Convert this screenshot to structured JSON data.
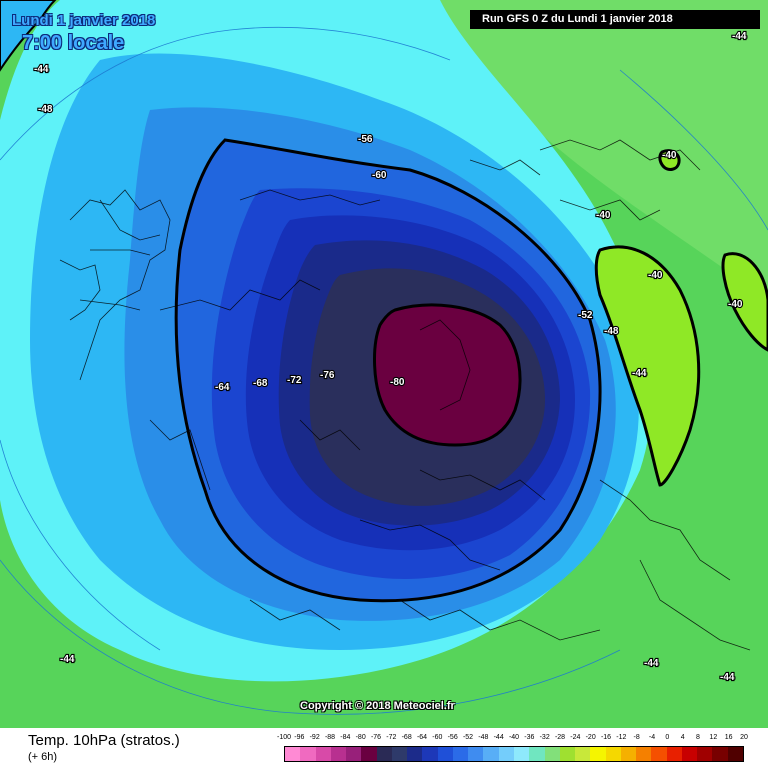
{
  "header": {
    "date": "Lundi 1 janvier 2018",
    "hour": "7:00 locale",
    "run": "Run GFS 0 Z du Lundi 1 janvier 2018"
  },
  "copyright": "Copyright © 2018 Meteociel.fr",
  "footer": {
    "title": "Temp. 10hPa (stratos.)",
    "subtitle": "(+ 6h)"
  },
  "legend": {
    "ticks": [
      "-100",
      "-96",
      "-92",
      "-88",
      "-84",
      "-80",
      "-76",
      "-72",
      "-68",
      "-64",
      "-60",
      "-56",
      "-52",
      "-48",
      "-44",
      "-40",
      "-36",
      "-32",
      "-28",
      "-24",
      "-20",
      "-16",
      "-12",
      "-8",
      "-4",
      "0",
      "4",
      "8",
      "12",
      "16",
      "20"
    ],
    "colors": [
      "#ff8ad4",
      "#f06ac0",
      "#d84aa8",
      "#b83090",
      "#98207a",
      "#6a0040",
      "#2a2a55",
      "#2e3a6a",
      "#1c2b8a",
      "#1d38b8",
      "#1f50d8",
      "#2b6be8",
      "#3f8cf0",
      "#58aef6",
      "#74cdfb",
      "#8ee9fc",
      "#70e6c0",
      "#82e07a",
      "#9fe030",
      "#c8e83a",
      "#f5f500",
      "#f5d800",
      "#f5b000",
      "#f58000",
      "#f55000",
      "#e82000",
      "#c80000",
      "#a00000",
      "#780000",
      "#500000"
    ]
  },
  "map_labels": [
    {
      "text": "-44",
      "where": "top-left corner"
    },
    {
      "text": "-48",
      "where": "upper left"
    },
    {
      "text": "-56",
      "where": "north of vortex"
    },
    {
      "text": "-60",
      "where": "north of vortex"
    },
    {
      "text": "-64",
      "where": "west of vortex"
    },
    {
      "text": "-68",
      "where": "west of vortex"
    },
    {
      "text": "-72",
      "where": "west of vortex"
    },
    {
      "text": "-76",
      "where": "west of vortex"
    },
    {
      "text": "-80",
      "where": "vortex core"
    },
    {
      "text": "-52",
      "where": "east of vortex"
    },
    {
      "text": "-48",
      "where": "east of vortex"
    },
    {
      "text": "-44",
      "where": "east of vortex"
    },
    {
      "text": "-40",
      "where": "east green zone"
    },
    {
      "text": "-40",
      "where": "east green zone"
    },
    {
      "text": "-40",
      "where": "east green zone"
    },
    {
      "text": "-40",
      "where": "far east green zone"
    },
    {
      "text": "-44",
      "where": "top-right corner"
    },
    {
      "text": "-44",
      "where": "lower left"
    },
    {
      "text": "-44",
      "where": "lower right"
    },
    {
      "text": "-44",
      "where": "lower right corner"
    }
  ],
  "colors": {
    "background_green": "#57d45a",
    "light_green": "#75e06a",
    "cyan": "#5ef2f8",
    "light_blue": "#2db7f4",
    "blue1": "#2a8ee8",
    "blue2": "#2166de",
    "blue3": "#1b45d0",
    "blue4": "#1630b8",
    "navy": "#1a2a8a",
    "deep_navy": "#222a5a",
    "core": "#6a0040",
    "lime": "#8fe826",
    "contour": "#000000"
  }
}
